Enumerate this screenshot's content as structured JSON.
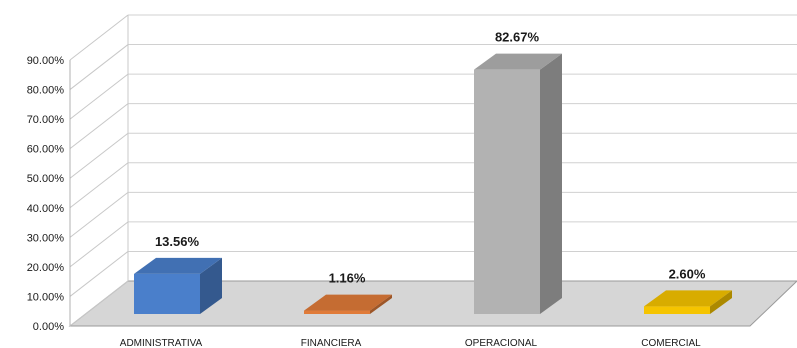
{
  "chart_data": {
    "type": "bar",
    "style": "3d-column",
    "categories": [
      "ADMINISTRATIVA",
      "FINANCIERA",
      "OPERACIONAL",
      "COMERCIAL"
    ],
    "values": [
      13.56,
      1.16,
      82.67,
      2.6
    ],
    "data_labels": [
      "13.56%",
      "1.16%",
      "82.67%",
      "2.60%"
    ],
    "colors": [
      "#4a7fcb",
      "#e07b39",
      "#b2b2b2",
      "#f5c400"
    ],
    "ylim": [
      0,
      90
    ],
    "yticks": [
      0,
      10,
      20,
      30,
      40,
      50,
      60,
      70,
      80,
      90
    ],
    "ytick_labels": [
      "0.00%",
      "10.00%",
      "20.00%",
      "30.00%",
      "40.00%",
      "50.00%",
      "60.00%",
      "70.00%",
      "80.00%",
      "90.00%"
    ],
    "grid": true,
    "legend": false
  }
}
